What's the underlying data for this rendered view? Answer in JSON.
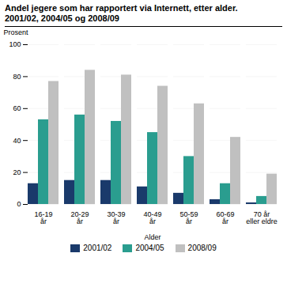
{
  "chart_data": {
    "type": "bar",
    "title": "Andel jegere som har rapportert via Internett, etter alder.",
    "subtitle": "2001/02, 2004/05 og 2008/09",
    "xlabel": "Alder",
    "ylabel": "Prosent",
    "categories": [
      "16-19\når",
      "20-29\når",
      "30-39\når",
      "40-49\når",
      "50-59\når",
      "60-69\når",
      "70 år\neller eldre"
    ],
    "series": [
      {
        "name": "2001/02",
        "color": "#1a3a6b",
        "values": [
          13,
          15,
          15,
          11,
          7,
          3,
          1
        ]
      },
      {
        "name": "2004/05",
        "color": "#2a9d8f",
        "values": [
          53,
          56,
          52,
          45,
          30,
          13,
          5
        ]
      },
      {
        "name": "2008/09",
        "color": "#c0c0c0",
        "values": [
          77,
          84,
          81,
          74,
          63,
          42,
          19
        ]
      }
    ],
    "ylim": [
      0,
      100
    ],
    "yticks": [
      0,
      20,
      40,
      60,
      80,
      100
    ],
    "grid": true,
    "legend": "bottom"
  }
}
